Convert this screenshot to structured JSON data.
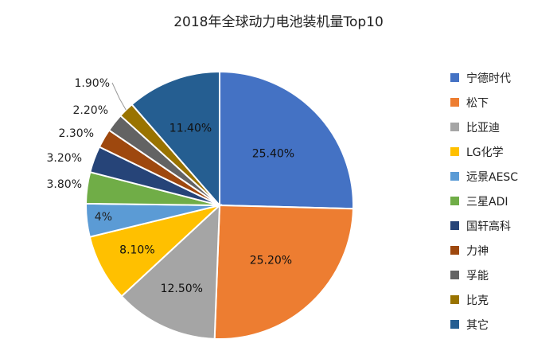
{
  "chart_data": {
    "type": "pie",
    "title": "2018年全球动力电池装机量Top10",
    "legend_position": "right",
    "start_angle_deg": 0,
    "direction": "clockwise",
    "slices": [
      {
        "name": "宁德时代",
        "value": 25.4,
        "label": "25.40%",
        "color": "#4472C4"
      },
      {
        "name": "松下",
        "value": 25.2,
        "label": "25.20%",
        "color": "#ED7D31"
      },
      {
        "name": "比亚迪",
        "value": 12.5,
        "label": "12.50%",
        "color": "#A5A5A5"
      },
      {
        "name": "LG化学",
        "value": 8.1,
        "label": "8.10%",
        "color": "#FFC000"
      },
      {
        "name": "远景AESC",
        "value": 4,
        "label": "4%",
        "color": "#5B9BD5"
      },
      {
        "name": "三星ADI",
        "value": 3.8,
        "label": "3.80%",
        "color": "#70AD47"
      },
      {
        "name": "国轩高科",
        "value": 3.2,
        "label": "3.20%",
        "color": "#264478"
      },
      {
        "name": "力神",
        "value": 2.3,
        "label": "2.30%",
        "color": "#9E480E"
      },
      {
        "name": "孚能",
        "value": 2.2,
        "label": "2.20%",
        "color": "#636363"
      },
      {
        "name": "比克",
        "value": 1.9,
        "label": "1.90%",
        "color": "#997300"
      },
      {
        "name": "其它",
        "value": 11.4,
        "label": "11.40%",
        "color": "#255E91"
      }
    ]
  }
}
